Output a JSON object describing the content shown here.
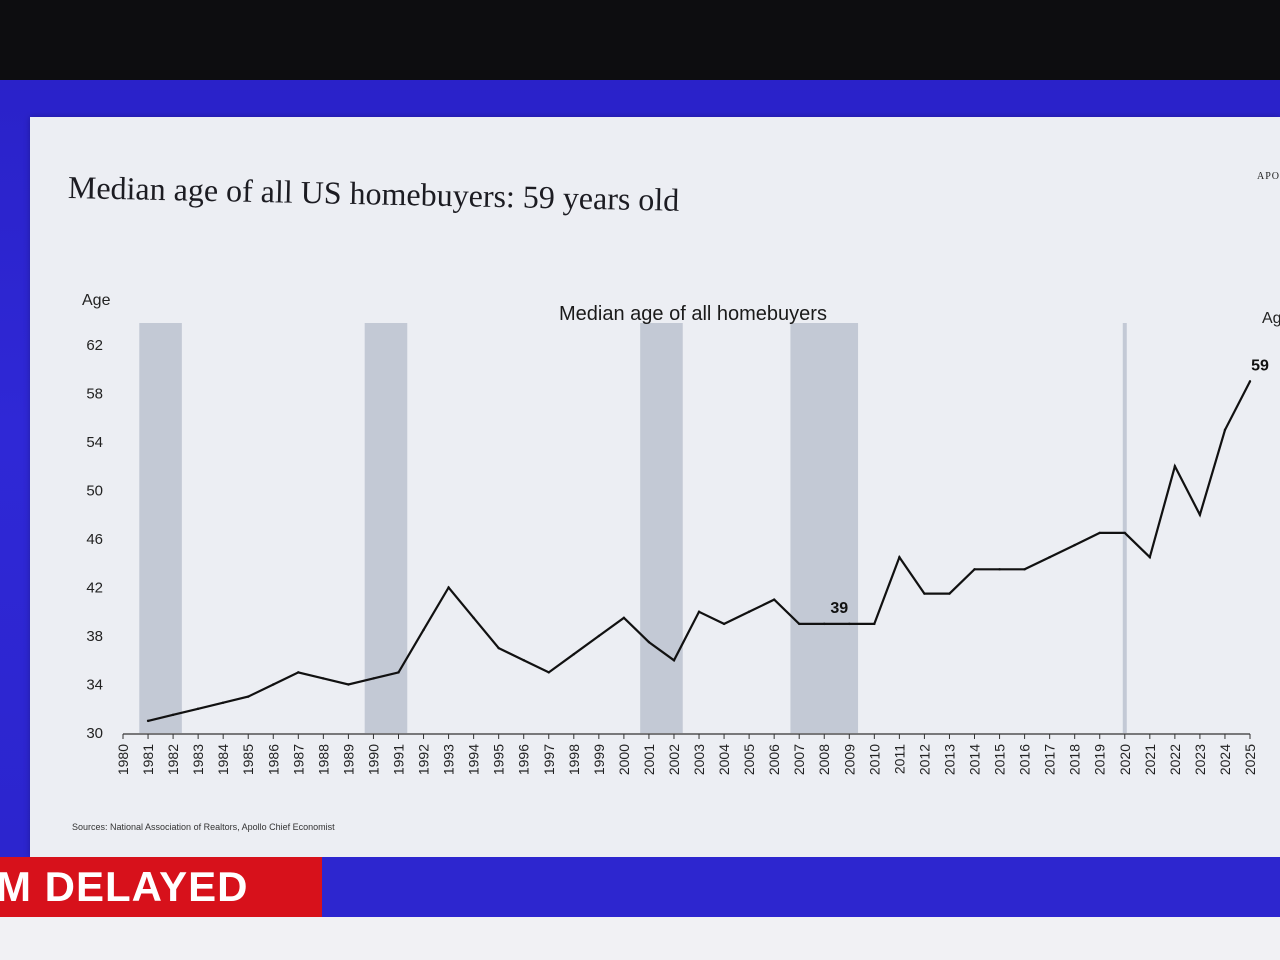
{
  "slide": {
    "title": "Median age of all US homebuyers: 59 years old",
    "brand": "APO",
    "source": "Sources: National Association of Realtors, Apollo Chief Economist"
  },
  "ticker": {
    "text": "M DELAYED"
  },
  "chart_data": {
    "type": "line",
    "title": "Median age of all homebuyers",
    "ylabel": "Age",
    "right_axis_label": "Ag",
    "ylim": [
      30,
      62
    ],
    "yticks": [
      30,
      34,
      38,
      42,
      46,
      50,
      54,
      58,
      62
    ],
    "x": [
      1981,
      1982,
      1983,
      1984,
      1985,
      1986,
      1987,
      1988,
      1989,
      1990,
      1991,
      1992,
      1993,
      1994,
      1995,
      1996,
      1997,
      1998,
      1999,
      2000,
      2001,
      2002,
      2003,
      2004,
      2005,
      2006,
      2007,
      2008,
      2009,
      2010,
      2011,
      2012,
      2013,
      2014,
      2015,
      2016,
      2017,
      2018,
      2019,
      2020,
      2021,
      2022,
      2023,
      2024,
      2025
    ],
    "xticks": [
      1980,
      1981,
      1982,
      1983,
      1984,
      1985,
      1986,
      1987,
      1988,
      1989,
      1990,
      1991,
      1992,
      1993,
      1994,
      1995,
      1996,
      1997,
      1998,
      1999,
      2000,
      2001,
      2002,
      2003,
      2004,
      2005,
      2006,
      2007,
      2008,
      2009,
      2010,
      2011,
      2012,
      2013,
      2014,
      2015,
      2016,
      2017,
      2018,
      2019,
      2020,
      2021,
      2022,
      2023,
      2024,
      2025
    ],
    "series": [
      {
        "values": [
          31,
          31.5,
          32,
          32.5,
          33,
          34,
          35,
          34.5,
          34,
          34.5,
          35,
          38.5,
          42,
          39.5,
          37,
          36,
          35,
          36.5,
          38,
          39.5,
          37.5,
          36,
          40,
          39,
          40,
          41,
          39,
          39,
          39,
          39,
          44.5,
          41.5,
          41.5,
          43.5,
          43.5,
          43.5,
          44.5,
          45.5,
          46.5,
          46.5,
          44.5,
          52,
          48,
          55,
          59
        ]
      }
    ],
    "recessions": [
      [
        1981,
        1982
      ],
      [
        1990,
        1991
      ],
      [
        2001,
        2002
      ],
      [
        2007,
        2009
      ],
      [
        2020,
        2020
      ]
    ],
    "annotations": [
      {
        "label": "39",
        "x": 2009,
        "y": 39
      },
      {
        "label": "59",
        "x": 2025,
        "y": 59
      }
    ],
    "colors": {
      "line": "#111111",
      "recession": "#bcc2cf",
      "text": "#222222"
    }
  }
}
